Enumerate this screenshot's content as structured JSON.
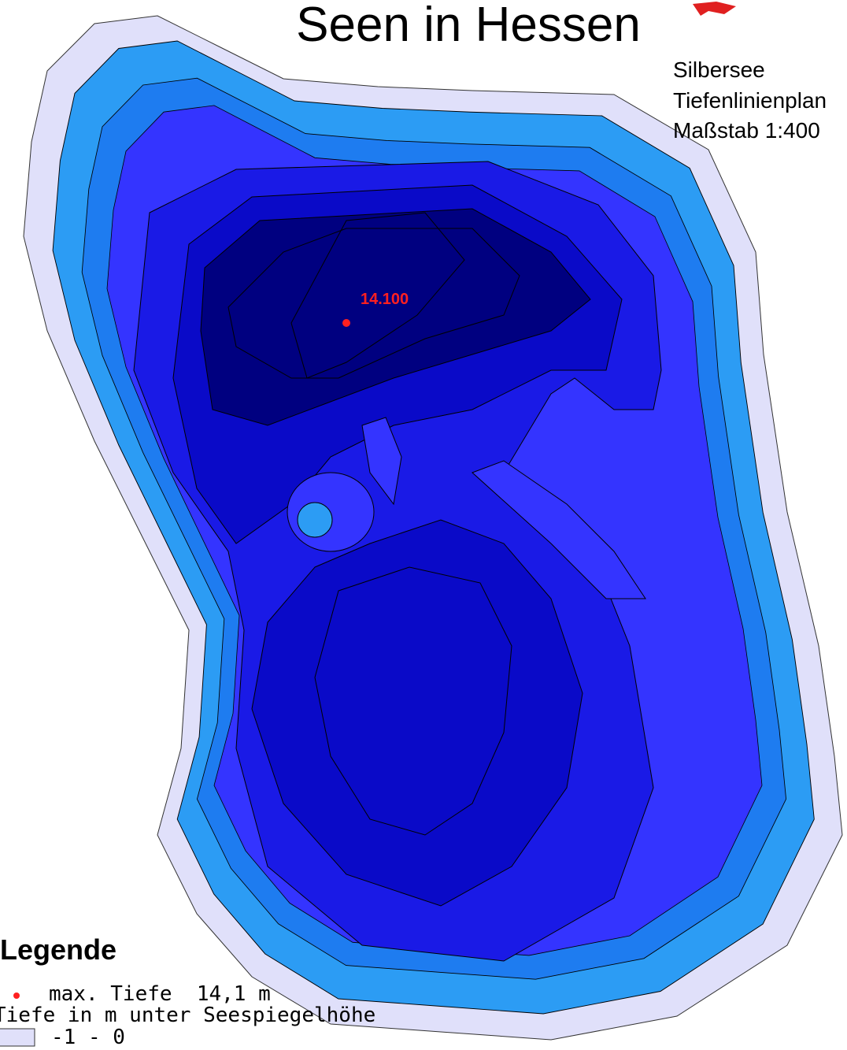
{
  "title": "Seen in Hessen",
  "info": {
    "lake": "Silbersee",
    "plan": "Tiefenlinienplan",
    "scale": "Maßstab 1:400"
  },
  "max_depth_label": "14.100",
  "legend": {
    "title": "Legende",
    "max_depth": "max. Tiefe  14,1 m",
    "depth_caption": "Tiefe in m unter Seespiegelhöhe",
    "classes": [
      "-1 - 0"
    ]
  }
}
